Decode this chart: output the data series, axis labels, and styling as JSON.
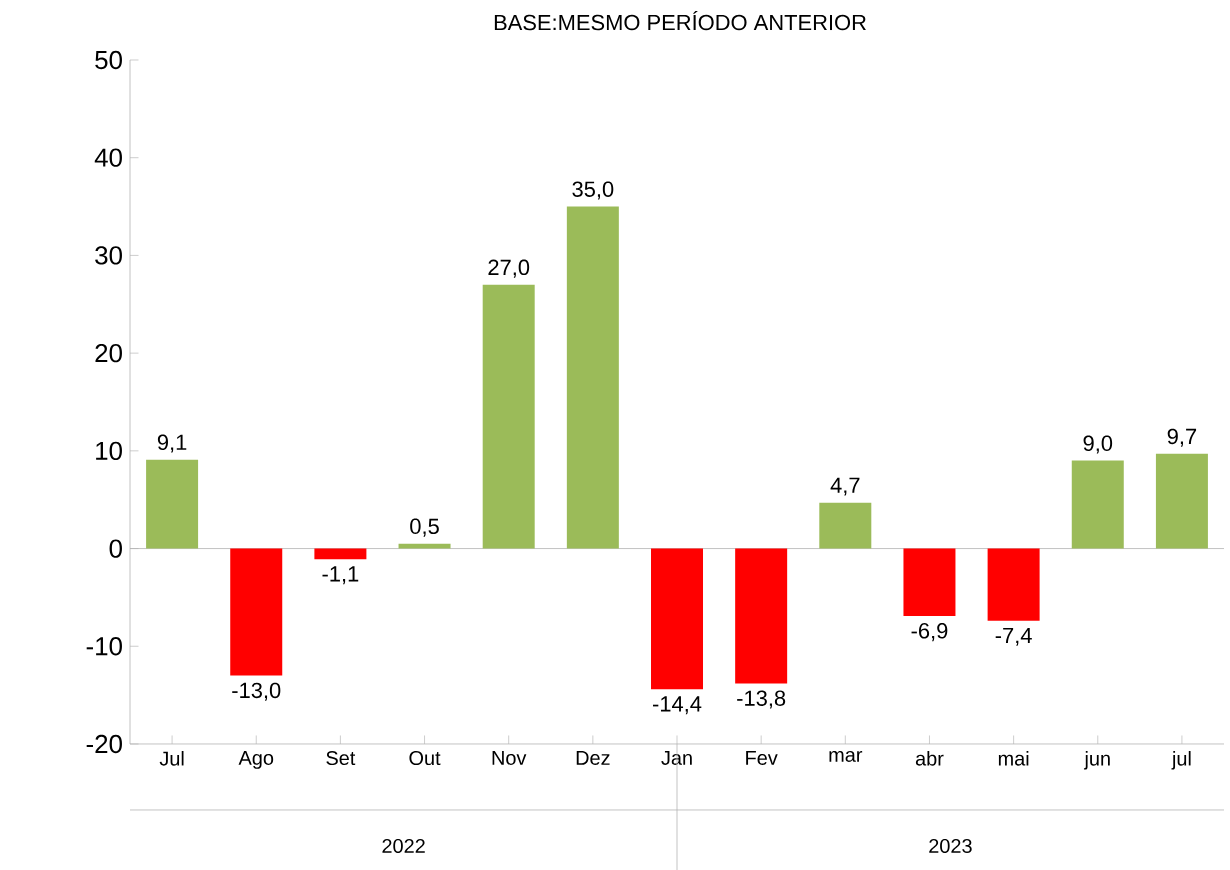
{
  "chart_data": {
    "type": "bar",
    "title": "BASE:MESMO PERÍODO ANTERIOR",
    "categories": [
      "Jul",
      "Ago",
      "Set",
      "Out",
      "Nov",
      "Dez",
      "Jan",
      "Fev",
      "mar",
      "abr",
      "mai",
      "jun",
      "jul"
    ],
    "values": [
      9.1,
      -13.0,
      -1.1,
      0.5,
      27.0,
      35.0,
      -14.4,
      -13.8,
      4.7,
      -6.9,
      -7.4,
      9.0,
      9.7
    ],
    "value_labels": [
      "9,1",
      "-13,0",
      "-1,1",
      "0,5",
      "27,0",
      "35,0",
      "-14,4",
      "-13,8",
      "4,7",
      "-6,9",
      "-7,4",
      "9,0",
      "9,7"
    ],
    "colors": [
      "#9bbb59",
      "#ff0000",
      "#ff0000",
      "#9bbb59",
      "#9bbb59",
      "#9bbb59",
      "#ff0000",
      "#ff0000",
      "#9bbb59",
      "#ff0000",
      "#ff0000",
      "#9bbb59",
      "#9bbb59"
    ],
    "ylim": [
      -20,
      50
    ],
    "yticks": [
      -20,
      -10,
      0,
      10,
      20,
      30,
      40,
      50
    ],
    "annotations": [
      "2022",
      "2023"
    ]
  }
}
